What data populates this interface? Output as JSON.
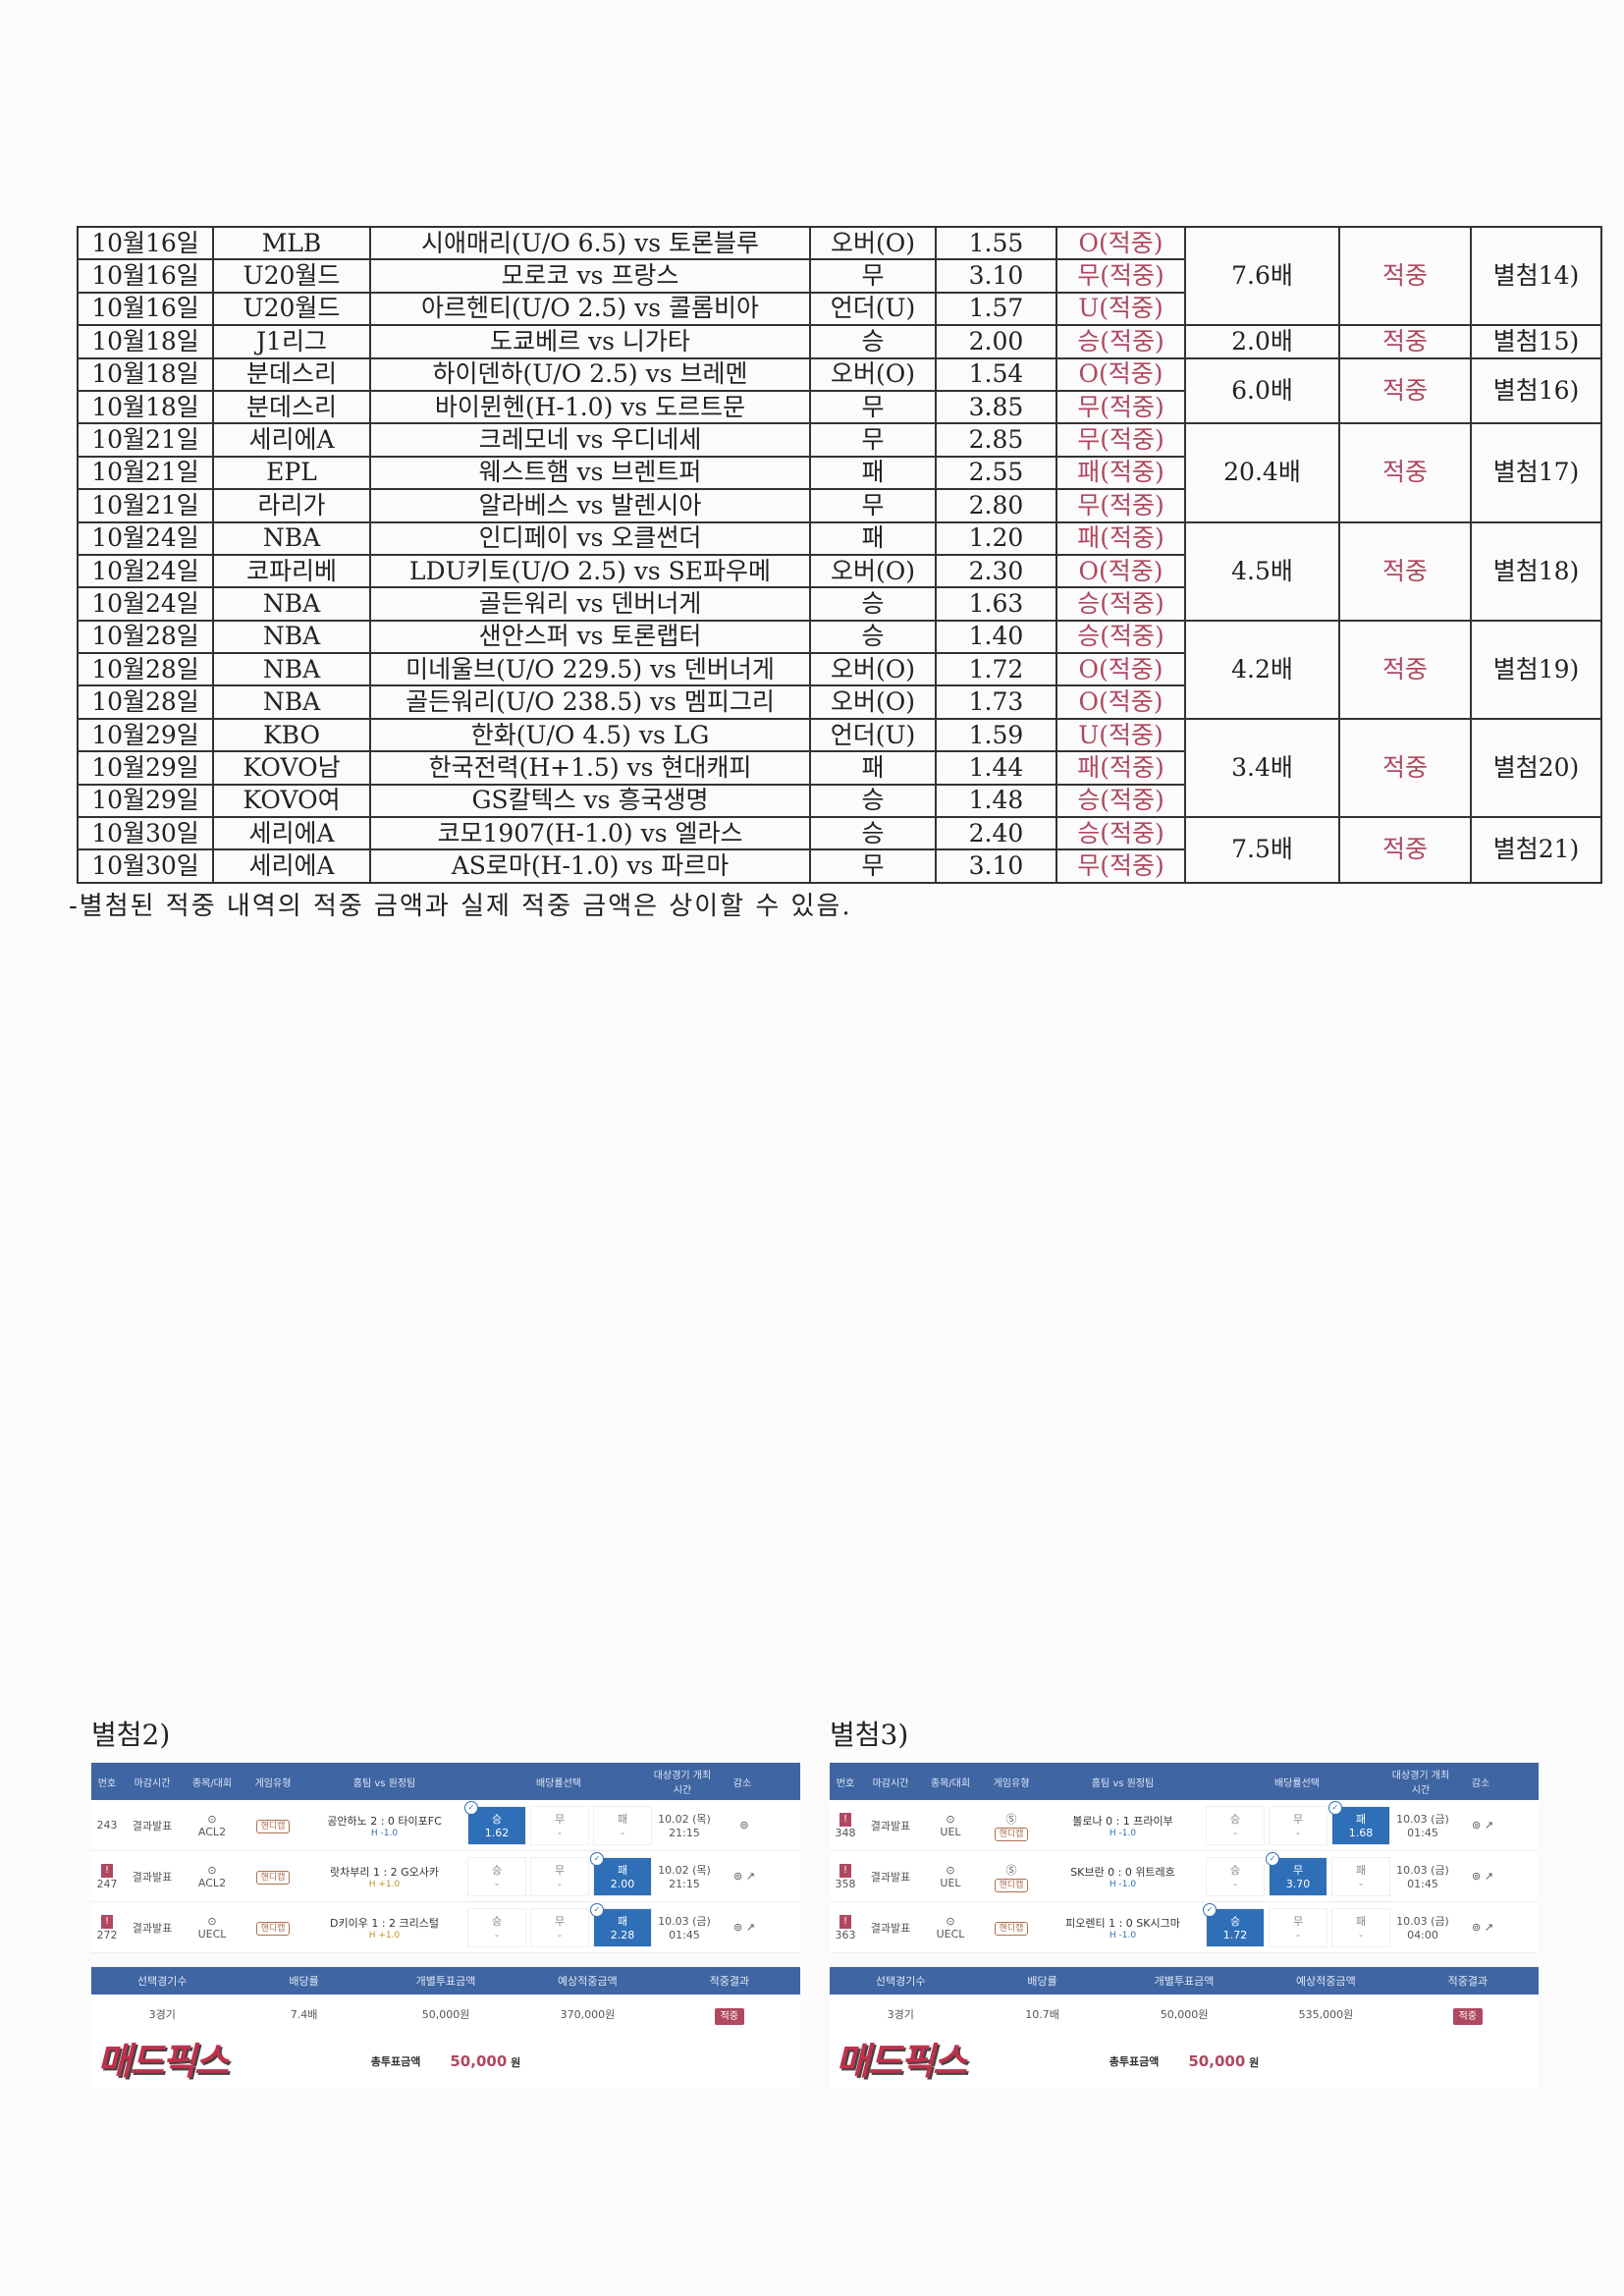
{
  "table": {
    "groups": [
      {
        "rows": [
          [
            "10월16일",
            "MLB",
            "시애매리(U/O 6.5) vs 토론블루",
            "오버(O)",
            "1.55",
            "O(적중)"
          ],
          [
            "10월16일",
            "U20월드",
            "모로코 vs 프랑스",
            "무",
            "3.10",
            "무(적중)"
          ],
          [
            "10월16일",
            "U20월드",
            "아르헨티(U/O 2.5) vs 콜롬비아",
            "언더(U)",
            "1.57",
            "U(적중)"
          ]
        ],
        "odds": "7.6배",
        "result": "적중",
        "ref": "별첨14)"
      },
      {
        "rows": [
          [
            "10월18일",
            "J1리그",
            "도쿄베르 vs 니가타",
            "승",
            "2.00",
            "승(적중)"
          ]
        ],
        "odds": "2.0배",
        "result": "적중",
        "ref": "별첨15)"
      },
      {
        "rows": [
          [
            "10월18일",
            "분데스리",
            "하이덴하(U/O 2.5) vs 브레멘",
            "오버(O)",
            "1.54",
            "O(적중)"
          ],
          [
            "10월18일",
            "분데스리",
            "바이뮌헨(H-1.0) vs 도르트문",
            "무",
            "3.85",
            "무(적중)"
          ]
        ],
        "odds": "6.0배",
        "result": "적중",
        "ref": "별첨16)"
      },
      {
        "rows": [
          [
            "10월21일",
            "세리에A",
            "크레모네 vs 우디네세",
            "무",
            "2.85",
            "무(적중)"
          ],
          [
            "10월21일",
            "EPL",
            "웨스트햄 vs 브렌트퍼",
            "패",
            "2.55",
            "패(적중)"
          ],
          [
            "10월21일",
            "라리가",
            "알라베스 vs 발렌시아",
            "무",
            "2.80",
            "무(적중)"
          ]
        ],
        "odds": "20.4배",
        "result": "적중",
        "ref": "별첨17)"
      },
      {
        "rows": [
          [
            "10월24일",
            "NBA",
            "인디페이 vs 오클썬더",
            "패",
            "1.20",
            "패(적중)"
          ],
          [
            "10월24일",
            "코파리베",
            "LDU키토(U/O 2.5) vs SE파우메",
            "오버(O)",
            "2.30",
            "O(적중)"
          ],
          [
            "10월24일",
            "NBA",
            "골든워리 vs 덴버너게",
            "승",
            "1.63",
            "승(적중)"
          ]
        ],
        "odds": "4.5배",
        "result": "적중",
        "ref": "별첨18)"
      },
      {
        "rows": [
          [
            "10월28일",
            "NBA",
            "샌안스퍼 vs 토론랩터",
            "승",
            "1.40",
            "승(적중)"
          ],
          [
            "10월28일",
            "NBA",
            "미네울브(U/O 229.5) vs 덴버너게",
            "오버(O)",
            "1.72",
            "O(적중)"
          ],
          [
            "10월28일",
            "NBA",
            "골든워리(U/O 238.5) vs 멤피그리",
            "오버(O)",
            "1.73",
            "O(적중)"
          ]
        ],
        "odds": "4.2배",
        "result": "적중",
        "ref": "별첨19)"
      },
      {
        "rows": [
          [
            "10월29일",
            "KBO",
            "한화(U/O 4.5) vs LG",
            "언더(U)",
            "1.59",
            "U(적중)"
          ],
          [
            "10월29일",
            "KOVO남",
            "한국전력(H+1.5) vs 현대캐피",
            "패",
            "1.44",
            "패(적중)"
          ],
          [
            "10월29일",
            "KOVO여",
            "GS칼텍스 vs 흥국생명",
            "승",
            "1.48",
            "승(적중)"
          ]
        ],
        "odds": "3.4배",
        "result": "적중",
        "ref": "별첨20)"
      },
      {
        "rows": [
          [
            "10월30일",
            "세리에A",
            "코모1907(H-1.0) vs 엘라스",
            "승",
            "2.40",
            "승(적중)"
          ],
          [
            "10월30일",
            "세리에A",
            "AS로마(H-1.0) vs 파르마",
            "무",
            "3.10",
            "무(적중)"
          ]
        ],
        "odds": "7.5배",
        "result": "적중",
        "ref": "별첨21)"
      }
    ]
  },
  "note": "-별첨된 적중 내역의 적중 금액과 실제 적중 금액은 상이할 수 있음.",
  "colors": {
    "hit": "#b04860",
    "header": "#3f65a3",
    "selected": "#2f6fb8"
  },
  "logo_text": "매드픽스",
  "attachments": [
    {
      "label": "별첨2)",
      "headers": [
        "번호",
        "마감시간",
        "종목/대회",
        "게임유형",
        "홈팀 vs 원정팀",
        "배당률선택",
        "대상경기 개최시간",
        "감소"
      ],
      "rows": [
        {
          "warn": false,
          "no": "243",
          "status": "결과발표",
          "league": "ACL2",
          "type": "핸디캡",
          "s": false,
          "match": "공안하노 2 : 0 타이포FC",
          "handicap": "H -1.0",
          "odds": [
            [
              "승",
              "1.62"
            ],
            [
              "무",
              "-"
            ],
            [
              "패",
              "-"
            ]
          ],
          "sel": 0,
          "date": "10.02 (목)",
          "time": "21:15"
        },
        {
          "warn": true,
          "no": "247",
          "status": "결과발표",
          "league": "ACL2",
          "type": "핸디캡",
          "s": false,
          "match": "랏차부리 1 : 2 G오사카",
          "handicap": "H +1.0",
          "odds": [
            [
              "승",
              "-"
            ],
            [
              "무",
              "-"
            ],
            [
              "패",
              "2.00"
            ]
          ],
          "sel": 2,
          "date": "10.02 (목)",
          "time": "21:15"
        },
        {
          "warn": true,
          "no": "272",
          "status": "결과발표",
          "league": "UECL",
          "type": "핸디캡",
          "s": false,
          "match": "D키이우 1 : 2 크리스털",
          "handicap": "H +1.0",
          "odds": [
            [
              "승",
              "-"
            ],
            [
              "무",
              "-"
            ],
            [
              "패",
              "2.28"
            ]
          ],
          "sel": 2,
          "date": "10.03 (금)",
          "time": "01:45"
        }
      ],
      "summary_headers": [
        "선택경기수",
        "배당률",
        "개별투표금액",
        "예상적중금액",
        "적중결과"
      ],
      "summary": {
        "count": "3경기",
        "odds": "7.4배",
        "stake": "50,000원",
        "expected": "370,000원",
        "result": "적중"
      },
      "total_label": "총투표금액",
      "total": "50,000",
      "total_unit": "원"
    },
    {
      "label": "별첨3)",
      "headers": [
        "번호",
        "마감시간",
        "종목/대회",
        "게임유형",
        "홈팀 vs 원정팀",
        "배당률선택",
        "대상경기 개최시간",
        "감소"
      ],
      "rows": [
        {
          "warn": true,
          "no": "348",
          "status": "결과발표",
          "league": "UEL",
          "type": "핸디캡",
          "s": true,
          "match": "볼로나 0 : 1 프라이부",
          "handicap": "H -1.0",
          "odds": [
            [
              "승",
              "-"
            ],
            [
              "무",
              "-"
            ],
            [
              "패",
              "1.68"
            ]
          ],
          "sel": 2,
          "date": "10.03 (금)",
          "time": "01:45"
        },
        {
          "warn": true,
          "no": "358",
          "status": "결과발표",
          "league": "UEL",
          "type": "핸디캡",
          "s": true,
          "match": "SK브란 0 : 0 위트레흐",
          "handicap": "H -1.0",
          "odds": [
            [
              "승",
              "-"
            ],
            [
              "무",
              "3.70"
            ],
            [
              "패",
              "-"
            ]
          ],
          "sel": 1,
          "date": "10.03 (금)",
          "time": "01:45"
        },
        {
          "warn": true,
          "no": "363",
          "status": "결과발표",
          "league": "UECL",
          "type": "핸디캡",
          "s": false,
          "match": "피오렌티 1 : 0 SK시그마",
          "handicap": "H -1.0",
          "odds": [
            [
              "승",
              "1.72"
            ],
            [
              "무",
              "-"
            ],
            [
              "패",
              "-"
            ]
          ],
          "sel": 0,
          "date": "10.03 (금)",
          "time": "04:00"
        }
      ],
      "summary_headers": [
        "선택경기수",
        "배당률",
        "개별투표금액",
        "예상적중금액",
        "적중결과"
      ],
      "summary": {
        "count": "3경기",
        "odds": "10.7배",
        "stake": "50,000원",
        "expected": "535,000원",
        "result": "적중"
      },
      "total_label": "총투표금액",
      "total": "50,000",
      "total_unit": "원"
    }
  ]
}
